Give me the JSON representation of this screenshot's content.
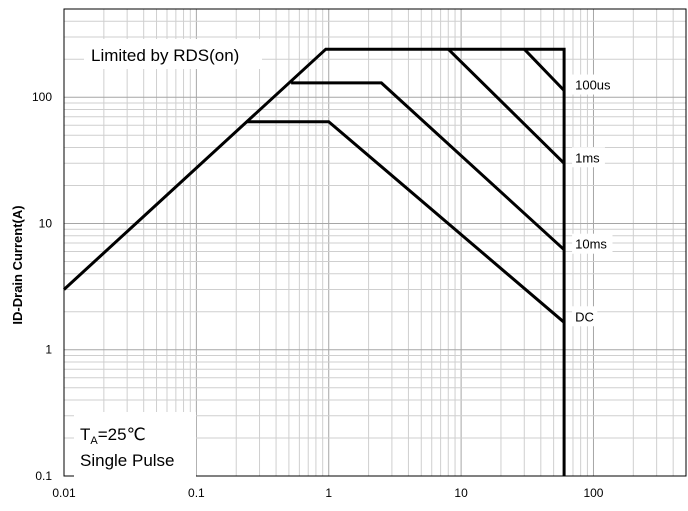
{
  "chart_data": {
    "type": "line",
    "title": "",
    "xlabel": "",
    "ylabel": "ID-Drain Current(A)",
    "xscale": "log",
    "yscale": "log",
    "xlim": [
      0.01,
      500
    ],
    "ylim": [
      0.1,
      500
    ],
    "grid": true,
    "x_ticks": [
      {
        "value": 0.01,
        "label": "0.01"
      },
      {
        "value": 0.1,
        "label": "0.1"
      },
      {
        "value": 1,
        "label": "1"
      },
      {
        "value": 10,
        "label": "10"
      },
      {
        "value": 100,
        "label": "100"
      }
    ],
    "y_ticks": [
      {
        "value": 0.1,
        "label": "0.1"
      },
      {
        "value": 1,
        "label": "1"
      },
      {
        "value": 10,
        "label": "10"
      },
      {
        "value": 100,
        "label": "100"
      }
    ],
    "series": [
      {
        "name": "",
        "points": [
          [
            0.01,
            3
          ],
          [
            0.95,
            240
          ],
          [
            60,
            240
          ],
          [
            60,
            0.1
          ]
        ]
      },
      {
        "name": "100us",
        "points": [
          [
            30,
            240
          ],
          [
            60,
            113
          ]
        ]
      },
      {
        "name": "1ms",
        "points": [
          [
            8,
            240
          ],
          [
            60,
            30
          ]
        ]
      },
      {
        "name": "10ms",
        "points": [
          [
            0.52,
            130
          ],
          [
            2.5,
            130
          ],
          [
            60,
            6.2
          ]
        ]
      },
      {
        "name": "DC",
        "points": [
          [
            0.24,
            64
          ],
          [
            1,
            64
          ],
          [
            60,
            1.65
          ]
        ]
      }
    ],
    "series_labels": [
      {
        "text": "100us",
        "x": 60,
        "y": 113
      },
      {
        "text": "1ms",
        "x": 60,
        "y": 30
      },
      {
        "text": "10ms",
        "x": 60,
        "y": 6.2
      },
      {
        "text": "DC",
        "x": 60,
        "y": 1.65
      }
    ],
    "annotations": {
      "limited": "Limited by RDS(on)",
      "ta_main": "T",
      "ta_sub": "A",
      "ta_rest": "=25℃",
      "pulse": "Single Pulse"
    }
  }
}
